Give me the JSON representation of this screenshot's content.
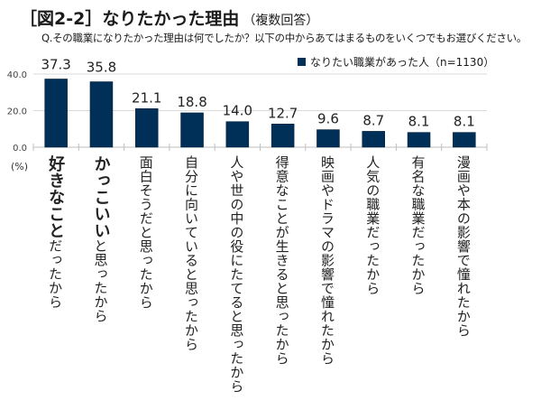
{
  "header": {
    "title": "［図2-2］なりたかった理由",
    "title_sub": "（複数回答）",
    "question": "Q.その職業になりたかった理由は何でしたか？以下の中からあてはまるものをいくつでもお選びください。"
  },
  "chart_data": {
    "type": "bar",
    "title": "［図2-2］なりたかった理由（複数回答）",
    "subtitle": "Q.その職業になりたかった理由は何でしたか？以下の中からあてはまるものをいくつでもお選びください。",
    "xlabel": "",
    "ylabel": "(%)",
    "ylim": [
      0,
      40
    ],
    "yticks": [
      "0.0",
      "20.0",
      "40.0"
    ],
    "grid": true,
    "legend_position": "top-right",
    "bar_color": "#003057",
    "series": [
      {
        "name": "なりたい職業があった人（n=1130）",
        "values": [
          37.3,
          35.8,
          21.1,
          18.8,
          14.0,
          12.7,
          9.6,
          8.7,
          8.1,
          8.1
        ]
      }
    ],
    "value_labels": [
      "37.3",
      "35.8",
      "21.1",
      "18.8",
      "14.0",
      "12.7",
      "9.6",
      "8.7",
      "8.1",
      "8.1"
    ],
    "categories": [
      {
        "emphasis": "好きなこと",
        "rest": "だったから"
      },
      {
        "emphasis": "かっこいい",
        "rest": "と思ったから"
      },
      {
        "emphasis": "",
        "rest": "面白そうだと思ったから"
      },
      {
        "emphasis": "",
        "rest": "自分に向いていると思ったから"
      },
      {
        "emphasis": "",
        "rest": "人や世の中の役にたてると思ったから"
      },
      {
        "emphasis": "",
        "rest": "得意なことが生きると思ったから"
      },
      {
        "emphasis": "",
        "rest": "映画やドラマの影響で憧れたから"
      },
      {
        "emphasis": "",
        "rest": "人気の職業だったから"
      },
      {
        "emphasis": "",
        "rest": "有名な職業だったから"
      },
      {
        "emphasis": "",
        "rest": "漫画や本の影響で憧れたから"
      }
    ]
  },
  "legend": {
    "label": "なりたい職業があった人（n=1130）"
  },
  "axis": {
    "unit": "(%)"
  }
}
